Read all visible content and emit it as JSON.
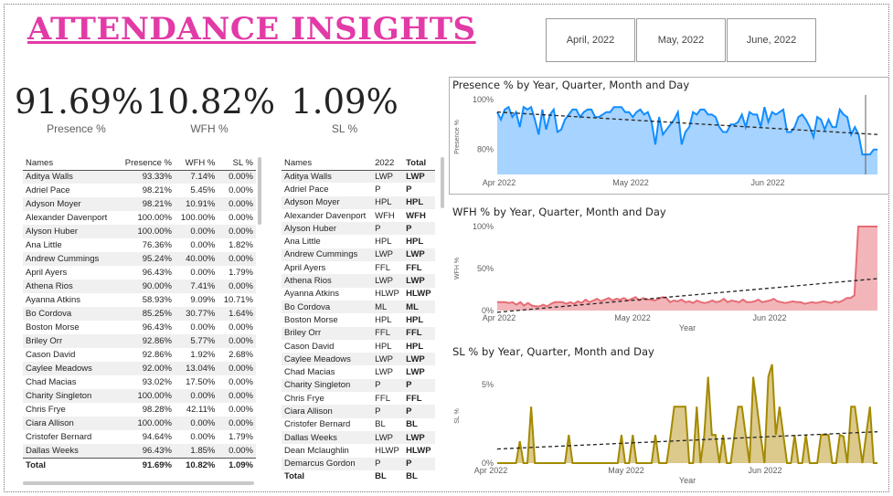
{
  "title": "ATTENDANCE INSIGHTS",
  "slicer": [
    "April, 2022",
    "May, 2022",
    "June, 2022"
  ],
  "kpis": [
    {
      "value": "91.69%",
      "label": "Presence %"
    },
    {
      "value": "10.82%",
      "label": "WFH %"
    },
    {
      "value": "1.09%",
      "label": "SL %"
    }
  ],
  "table1": {
    "headers": [
      "Names",
      "Presence %",
      "WFH %",
      "SL %"
    ],
    "rows": [
      [
        "Aditya Walls",
        "93.33%",
        "7.14%",
        "0.00%"
      ],
      [
        "Adriel Pace",
        "98.21%",
        "5.45%",
        "0.00%"
      ],
      [
        "Adyson Moyer",
        "98.21%",
        "10.91%",
        "0.00%"
      ],
      [
        "Alexander Davenport",
        "100.00%",
        "100.00%",
        "0.00%"
      ],
      [
        "Alyson Huber",
        "100.00%",
        "0.00%",
        "0.00%"
      ],
      [
        "Ana Little",
        "76.36%",
        "0.00%",
        "1.82%"
      ],
      [
        "Andrew Cummings",
        "95.24%",
        "40.00%",
        "0.00%"
      ],
      [
        "April Ayers",
        "96.43%",
        "0.00%",
        "1.79%"
      ],
      [
        "Athena Rios",
        "90.00%",
        "7.41%",
        "0.00%"
      ],
      [
        "Ayanna Atkins",
        "58.93%",
        "9.09%",
        "10.71%"
      ],
      [
        "Bo Cordova",
        "85.25%",
        "30.77%",
        "1.64%"
      ],
      [
        "Boston Morse",
        "96.43%",
        "0.00%",
        "0.00%"
      ],
      [
        "Briley Orr",
        "92.86%",
        "5.77%",
        "0.00%"
      ],
      [
        "Cason David",
        "92.86%",
        "1.92%",
        "2.68%"
      ],
      [
        "Caylee Meadows",
        "92.00%",
        "13.04%",
        "0.00%"
      ],
      [
        "Chad Macias",
        "93.02%",
        "17.50%",
        "0.00%"
      ],
      [
        "Charity Singleton",
        "100.00%",
        "0.00%",
        "0.00%"
      ],
      [
        "Chris Frye",
        "98.28%",
        "42.11%",
        "0.00%"
      ],
      [
        "Ciara Allison",
        "100.00%",
        "0.00%",
        "0.00%"
      ],
      [
        "Cristofer Bernard",
        "94.64%",
        "0.00%",
        "1.79%"
      ],
      [
        "Dallas Weeks",
        "96.43%",
        "1.85%",
        "0.00%"
      ]
    ],
    "total": [
      "Total",
      "91.69%",
      "10.82%",
      "1.09%"
    ]
  },
  "table2": {
    "headers": [
      "Names",
      "2022",
      "Total"
    ],
    "rows": [
      [
        "Aditya Walls",
        "LWP",
        "LWP"
      ],
      [
        "Adriel Pace",
        "P",
        "P"
      ],
      [
        "Adyson Moyer",
        "HPL",
        "HPL"
      ],
      [
        "Alexander Davenport",
        "WFH",
        "WFH"
      ],
      [
        "Alyson Huber",
        "P",
        "P"
      ],
      [
        "Ana Little",
        "HPL",
        "HPL"
      ],
      [
        "Andrew Cummings",
        "LWP",
        "LWP"
      ],
      [
        "April Ayers",
        "FFL",
        "FFL"
      ],
      [
        "Athena Rios",
        "LWP",
        "LWP"
      ],
      [
        "Ayanna Atkins",
        "HLWP",
        "HLWP"
      ],
      [
        "Bo Cordova",
        "ML",
        "ML"
      ],
      [
        "Boston Morse",
        "HPL",
        "HPL"
      ],
      [
        "Briley Orr",
        "FFL",
        "FFL"
      ],
      [
        "Cason David",
        "HPL",
        "HPL"
      ],
      [
        "Caylee Meadows",
        "LWP",
        "LWP"
      ],
      [
        "Chad Macias",
        "LWP",
        "LWP"
      ],
      [
        "Charity Singleton",
        "P",
        "P"
      ],
      [
        "Chris Frye",
        "FFL",
        "FFL"
      ],
      [
        "Ciara Allison",
        "P",
        "P"
      ],
      [
        "Cristofer Bernard",
        "BL",
        "BL"
      ],
      [
        "Dallas Weeks",
        "LWP",
        "LWP"
      ],
      [
        "Dean Mclaughlin",
        "HLWP",
        "HLWP"
      ],
      [
        "Demarcus Gordon",
        "P",
        "P"
      ]
    ],
    "total": [
      "Total",
      "BL",
      "BL"
    ]
  },
  "chart_data": [
    {
      "type": "area",
      "title": "Presence % by Year, Quarter, Month and Day",
      "ylabel": "Presence %",
      "xlabel": "",
      "x_ticks": [
        "Apr 2022",
        "May 2022",
        "Jun 2022"
      ],
      "y_ticks": [
        "80%",
        "100%"
      ],
      "ylim": [
        70,
        100
      ],
      "color": "#118dff",
      "fill": "#a6d3ff",
      "trend": [
        95,
        86
      ],
      "values": [
        95,
        92,
        96,
        97,
        93,
        95,
        89,
        97,
        96,
        97,
        92,
        86,
        96,
        88,
        94,
        96,
        87,
        88,
        92,
        94,
        96,
        96,
        93,
        95,
        96,
        96,
        93,
        93,
        94,
        95,
        95,
        97,
        97,
        97,
        95,
        95,
        93,
        95,
        96,
        94,
        95,
        91,
        82,
        93,
        86,
        88,
        90,
        92,
        95,
        82,
        87,
        89,
        95,
        94,
        96,
        96,
        94,
        94,
        93,
        89,
        87,
        87,
        90,
        90,
        91,
        94,
        89,
        95,
        94,
        94,
        89,
        97,
        91,
        95,
        94,
        95,
        96,
        87,
        87,
        89,
        93,
        94,
        92,
        89,
        85,
        93,
        92,
        88,
        92,
        89,
        89,
        96,
        94,
        93,
        86,
        89,
        86,
        78,
        78,
        78,
        80,
        80
      ]
    },
    {
      "type": "area",
      "title": "WFH % by Year, Quarter, Month and Day",
      "ylabel": "WFH %",
      "xlabel": "Year",
      "x_ticks": [
        "Apr 2022",
        "May 2022",
        "Jun 2022"
      ],
      "y_ticks": [
        "0%",
        "50%",
        "100%"
      ],
      "ylim": [
        0,
        100
      ],
      "color": "#e66c74",
      "fill": "#f2b6ba",
      "trend": [
        -2,
        38
      ],
      "values": [
        10,
        10,
        10,
        9,
        10,
        7,
        10,
        6,
        9,
        6,
        5,
        5,
        7,
        5,
        8,
        10,
        10,
        10,
        8,
        10,
        8,
        11,
        9,
        13,
        10,
        12,
        14,
        11,
        13,
        15,
        12,
        14,
        13,
        15,
        12,
        14,
        16,
        12,
        15,
        13,
        13,
        12,
        14,
        16,
        15,
        10,
        12,
        11,
        13,
        10,
        11,
        9,
        12,
        10,
        9,
        10,
        12,
        10,
        11,
        14,
        10,
        12,
        11,
        10,
        13,
        10,
        10,
        11,
        13,
        10,
        11,
        12,
        14,
        11,
        10,
        9,
        10,
        11,
        10,
        10,
        8,
        9,
        10,
        9,
        10,
        11,
        10,
        9,
        11,
        10,
        12,
        15,
        15,
        18,
        100,
        100,
        100,
        100,
        100,
        100
      ]
    },
    {
      "type": "area",
      "title": "SL % by Year, Quarter, Month and Day",
      "ylabel": "SL %",
      "xlabel": "Year",
      "x_ticks": [
        "Apr 2022",
        "May 2022",
        "Jun 2022"
      ],
      "y_ticks": [
        "0%",
        "5%"
      ],
      "ylim": [
        0,
        6
      ],
      "color": "#a38a00",
      "fill": "#dcc98c",
      "trend": [
        0.9,
        2.0
      ],
      "values": [
        0,
        0,
        0,
        0,
        0,
        0,
        1.4,
        0,
        0,
        3.6,
        0,
        0,
        0,
        0,
        0,
        0,
        0,
        0,
        0,
        1.8,
        0,
        0,
        0,
        0,
        0,
        0,
        0,
        0,
        0,
        0,
        0,
        0,
        0,
        1.8,
        0,
        0,
        1.8,
        0,
        0,
        0,
        0,
        0,
        1.8,
        0,
        0,
        0,
        1.7,
        3.6,
        3.6,
        3.6,
        3.6,
        0,
        0,
        3.6,
        0,
        1.8,
        5.5,
        1.8,
        1.8,
        0,
        1.8,
        0,
        0,
        1.8,
        3.6,
        3.6,
        1.8,
        0,
        5.5,
        3.6,
        1.7,
        0,
        5.5,
        6.3,
        1.8,
        3.6,
        1.8,
        0,
        0,
        1.8,
        0,
        0,
        1.8,
        0,
        0,
        0,
        1.8,
        1.8,
        1.8,
        0,
        0,
        1.8,
        1.7,
        0,
        3.6,
        3.6,
        1.8,
        0,
        1.8,
        3.6,
        0,
        0
      ]
    }
  ]
}
